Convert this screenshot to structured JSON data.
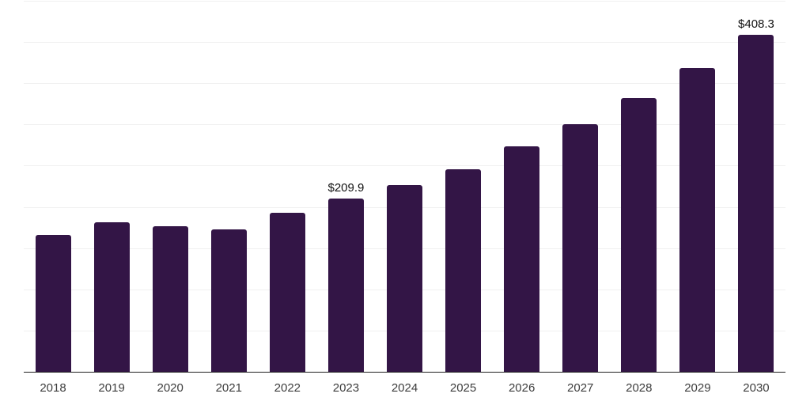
{
  "chart_data": {
    "type": "bar",
    "title": "",
    "xlabel": "",
    "ylabel": "",
    "categories": [
      "2018",
      "2019",
      "2020",
      "2021",
      "2022",
      "2023",
      "2024",
      "2025",
      "2026",
      "2027",
      "2028",
      "2029",
      "2030"
    ],
    "values": [
      166,
      181,
      177,
      173,
      193,
      209.9,
      226,
      246,
      273,
      300,
      332,
      368,
      408.3
    ],
    "bar_labels": [
      "",
      "",
      "",
      "",
      "",
      "$209.9",
      "",
      "",
      "",
      "",
      "",
      "",
      "$408.3"
    ],
    "ylim": [
      0,
      450
    ],
    "grid_step": 50,
    "grid": true,
    "y_tick_labels_visible": false,
    "legend_position": "none",
    "colors": {
      "bar": "#331546",
      "gridline": "#f0f0f0",
      "axis_line": "#1f1f1f",
      "data_label": "#111111",
      "tick_label": "#3d3d3d",
      "background": "#ffffff"
    }
  }
}
